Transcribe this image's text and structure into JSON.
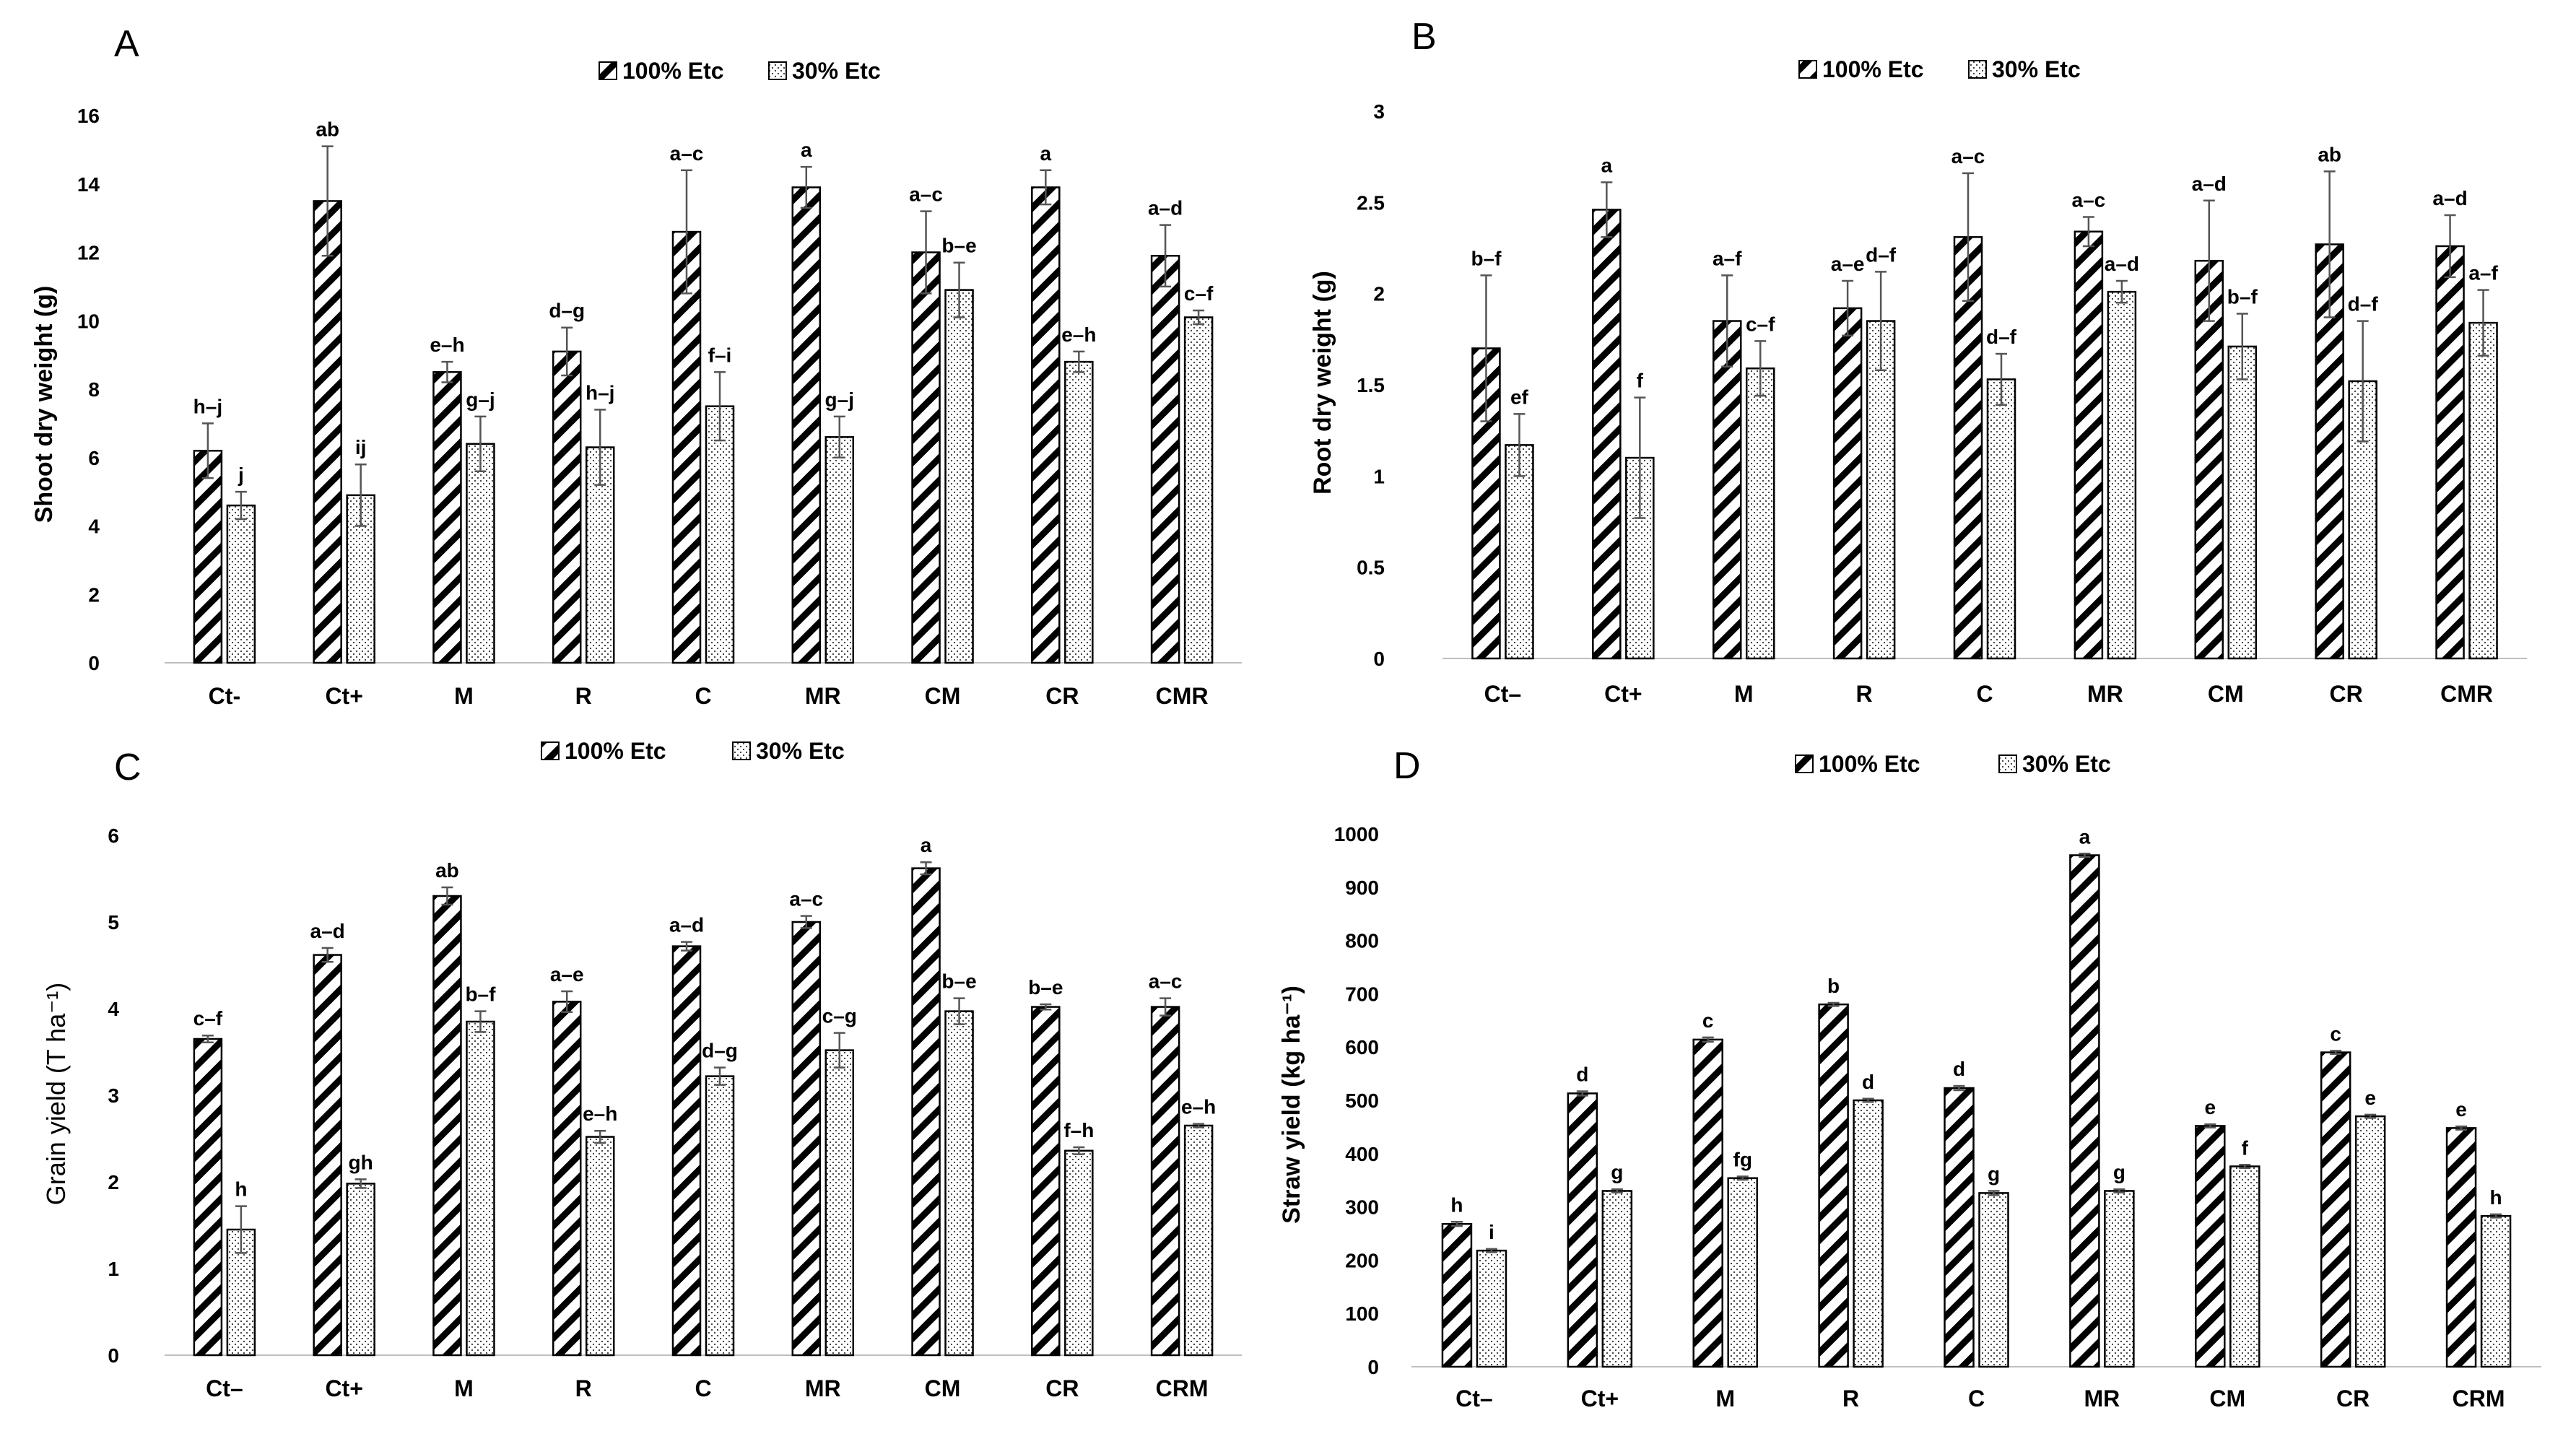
{
  "colors": {
    "bar_stroke": "#000000",
    "hatch": "#000000",
    "dots": "#333333",
    "error_bar": "#555555",
    "axis": "#bfbfbf"
  },
  "chart_data": [
    {
      "panel": "A",
      "type": "bar",
      "legend": [
        "100% Etc",
        "30% Etc"
      ],
      "categories": [
        "Ct-",
        "Ct+",
        "M",
        "R",
        "C",
        "MR",
        "CM",
        "CR",
        "CMR"
      ],
      "ylabel": "Shoot dry weight (g)",
      "ylim": [
        0,
        16
      ],
      "yticks": [
        "0",
        "2",
        "4",
        "6",
        "8",
        "10",
        "12",
        "14",
        "16"
      ],
      "yticks_values": [
        0,
        2,
        4,
        6,
        8,
        10,
        12,
        14,
        16
      ],
      "series": [
        {
          "name": "100% Etc",
          "values": [
            6.2,
            13.5,
            8.5,
            9.1,
            12.6,
            13.9,
            12.0,
            13.9,
            11.9
          ],
          "errors": [
            0.8,
            1.6,
            0.3,
            0.7,
            1.8,
            0.6,
            1.2,
            0.5,
            0.9
          ],
          "labels": [
            "h–j",
            "ab",
            "e–h",
            "d–g",
            "a–c",
            "a",
            "a–c",
            "a",
            "a–d"
          ]
        },
        {
          "name": "30% Etc",
          "values": [
            4.6,
            4.9,
            6.4,
            6.3,
            7.5,
            6.6,
            10.9,
            8.8,
            10.1
          ],
          "errors": [
            0.4,
            0.9,
            0.8,
            1.1,
            1.0,
            0.6,
            0.8,
            0.3,
            0.2
          ],
          "labels": [
            "j",
            "ij",
            "g–j",
            "h–j",
            "f–i",
            "g–j",
            "b–e",
            "e–h",
            "c–f"
          ]
        }
      ]
    },
    {
      "panel": "B",
      "type": "bar",
      "legend": [
        "100% Etc",
        "30% Etc"
      ],
      "categories": [
        "Ct–",
        "Ct+",
        "M",
        "R",
        "C",
        "MR",
        "CM",
        "CR",
        "CMR"
      ],
      "ylabel": "Root dry weight (g)",
      "ylim": [
        0,
        3
      ],
      "yticks": [
        "0",
        "0.5",
        "1",
        "1.5",
        "2",
        "2.5",
        "3"
      ],
      "yticks_values": [
        0,
        0.5,
        1,
        1.5,
        2,
        2.5,
        3
      ],
      "series": [
        {
          "name": "100% Etc",
          "values": [
            1.7,
            2.46,
            1.85,
            1.92,
            2.31,
            2.34,
            2.18,
            2.27,
            2.26
          ],
          "errors": [
            0.4,
            0.15,
            0.25,
            0.15,
            0.35,
            0.08,
            0.33,
            0.4,
            0.17
          ],
          "labels": [
            "b–f",
            "a",
            "a–f",
            "a–e",
            "a–c",
            "a–c",
            "a–d",
            "ab",
            "a–d"
          ]
        },
        {
          "name": "30% Etc",
          "values": [
            1.17,
            1.1,
            1.59,
            1.85,
            1.53,
            2.01,
            1.71,
            1.52,
            1.84
          ],
          "errors": [
            0.17,
            0.33,
            0.15,
            0.27,
            0.14,
            0.06,
            0.18,
            0.33,
            0.18
          ],
          "labels": [
            "ef",
            "f",
            "c–f",
            "d–f",
            "d–f",
            "a–d",
            "b–f",
            "d–f",
            "a–f"
          ]
        }
      ]
    },
    {
      "panel": "C",
      "type": "bar",
      "legend": [
        "100% Etc",
        "30% Etc"
      ],
      "categories": [
        "Ct–",
        "Ct+",
        "M",
        "R",
        "C",
        "MR",
        "CM",
        "CR",
        "CRM"
      ],
      "ylabel": "Grain yield (T ha⁻¹)",
      "ylim": [
        0,
        6
      ],
      "yticks": [
        "0",
        "1",
        "2",
        "3",
        "4",
        "5",
        "6"
      ],
      "yticks_values": [
        0,
        1,
        2,
        3,
        4,
        5,
        6
      ],
      "series": [
        {
          "name": "100% Etc",
          "values": [
            3.65,
            4.62,
            5.3,
            4.08,
            4.72,
            5.0,
            5.62,
            4.02,
            4.02
          ],
          "errors": [
            0.04,
            0.08,
            0.1,
            0.12,
            0.05,
            0.07,
            0.07,
            0.03,
            0.1
          ],
          "labels": [
            "c–f",
            "a–d",
            "ab",
            "a–e",
            "a–d",
            "a–c",
            "a",
            "b–e",
            "a–c"
          ]
        },
        {
          "name": "30% Etc",
          "values": [
            1.45,
            1.98,
            3.85,
            2.52,
            3.22,
            3.52,
            3.97,
            2.36,
            2.65
          ],
          "errors": [
            0.27,
            0.05,
            0.12,
            0.07,
            0.1,
            0.2,
            0.15,
            0.04,
            0.02
          ],
          "labels": [
            "h",
            "gh",
            "b–f",
            "e–h",
            "d–g",
            "c–g",
            "b–e",
            "f–h",
            "e–h"
          ]
        }
      ]
    },
    {
      "panel": "D",
      "type": "bar",
      "legend": [
        "100%  Etc",
        "30% Etc"
      ],
      "categories": [
        "Ct–",
        "Ct+",
        "M",
        "R",
        "C",
        "MR",
        "CM",
        "CR",
        "CRM"
      ],
      "ylabel": "Straw yield (kg ha⁻¹)",
      "ylim": [
        0,
        1000
      ],
      "yticks": [
        "0",
        "100",
        "200",
        "300",
        "400",
        "500",
        "600",
        "700",
        "800",
        "900",
        "1000"
      ],
      "yticks_values": [
        0,
        100,
        200,
        300,
        400,
        500,
        600,
        700,
        800,
        900,
        1000
      ],
      "series": [
        {
          "name": "100%  Etc",
          "values": [
            268,
            513,
            614,
            680,
            523,
            960,
            452,
            590,
            448
          ],
          "errors": [
            4,
            4,
            4,
            3,
            4,
            3,
            3,
            3,
            3
          ],
          "labels": [
            "h",
            "d",
            "c",
            "b",
            "d",
            "a",
            "e",
            "c",
            "e"
          ]
        },
        {
          "name": "30% Etc",
          "values": [
            218,
            330,
            354,
            500,
            326,
            330,
            376,
            470,
            283
          ],
          "errors": [
            3,
            3,
            3,
            3,
            4,
            3,
            3,
            3,
            3
          ],
          "labels": [
            "i",
            "g",
            "fg",
            "d",
            "g",
            "g",
            "f",
            "e",
            "h"
          ]
        }
      ]
    }
  ]
}
